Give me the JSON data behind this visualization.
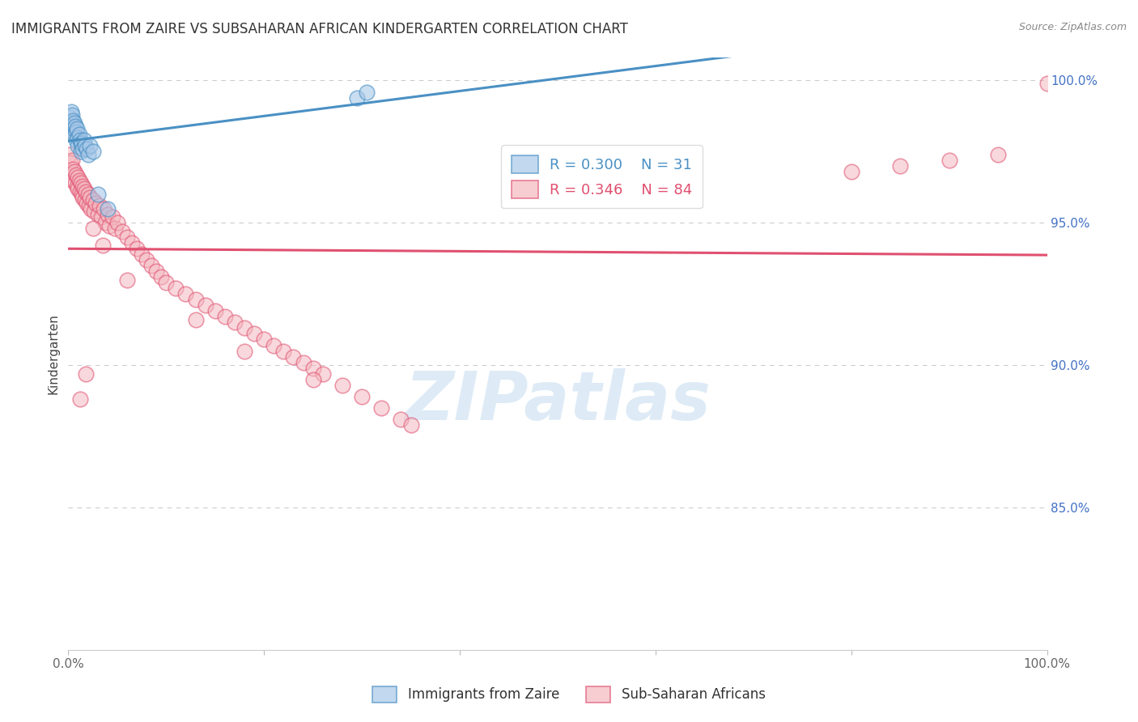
{
  "title": "IMMIGRANTS FROM ZAIRE VS SUBSAHARAN AFRICAN KINDERGARTEN CORRELATION CHART",
  "source": "Source: ZipAtlas.com",
  "ylabel": "Kindergarten",
  "xlim": [
    0,
    1.0
  ],
  "ylim": [
    0.8,
    1.008
  ],
  "x_ticks": [
    0.0,
    0.2,
    0.4,
    0.6,
    0.8,
    1.0
  ],
  "x_tick_labels": [
    "0.0%",
    "",
    "",
    "",
    "",
    "100.0%"
  ],
  "y_ticks_right": [
    1.0,
    0.95,
    0.9,
    0.85
  ],
  "y_tick_labels_right": [
    "100.0%",
    "95.0%",
    "90.0%",
    "85.0%"
  ],
  "blue_R": 0.3,
  "blue_N": 31,
  "pink_R": 0.346,
  "pink_N": 84,
  "blue_fill": "#a8c8e8",
  "blue_edge": "#4a90c4",
  "pink_fill": "#f4b8c0",
  "pink_edge": "#e05070",
  "blue_line": "#4a90c4",
  "pink_line": "#e05070",
  "grid_color": "#cccccc",
  "watermark_color": "#c8dff0",
  "blue_x": [
    0.002,
    0.003,
    0.003,
    0.004,
    0.004,
    0.005,
    0.005,
    0.006,
    0.006,
    0.007,
    0.008,
    0.008,
    0.009,
    0.01,
    0.01,
    0.011,
    0.012,
    0.013,
    0.013,
    0.014,
    0.015,
    0.016,
    0.017,
    0.019,
    0.02,
    0.022,
    0.025,
    0.03,
    0.04,
    0.295,
    0.305
  ],
  "blue_y": [
    0.987,
    0.989,
    0.985,
    0.988,
    0.984,
    0.986,
    0.983,
    0.985,
    0.981,
    0.984,
    0.982,
    0.979,
    0.983,
    0.98,
    0.977,
    0.981,
    0.979,
    0.978,
    0.975,
    0.978,
    0.976,
    0.979,
    0.977,
    0.976,
    0.974,
    0.977,
    0.975,
    0.96,
    0.955,
    0.994,
    0.996
  ],
  "pink_x": [
    0.001,
    0.002,
    0.003,
    0.004,
    0.005,
    0.005,
    0.006,
    0.007,
    0.008,
    0.009,
    0.01,
    0.01,
    0.011,
    0.012,
    0.013,
    0.014,
    0.015,
    0.015,
    0.016,
    0.017,
    0.018,
    0.019,
    0.02,
    0.021,
    0.022,
    0.023,
    0.025,
    0.026,
    0.028,
    0.03,
    0.032,
    0.034,
    0.036,
    0.038,
    0.04,
    0.042,
    0.045,
    0.048,
    0.05,
    0.055,
    0.06,
    0.065,
    0.07,
    0.075,
    0.08,
    0.085,
    0.09,
    0.095,
    0.1,
    0.11,
    0.12,
    0.13,
    0.14,
    0.15,
    0.16,
    0.17,
    0.18,
    0.19,
    0.2,
    0.21,
    0.22,
    0.23,
    0.24,
    0.25,
    0.26,
    0.28,
    0.3,
    0.32,
    0.34,
    0.35,
    0.18,
    0.25,
    0.62,
    0.8,
    0.85,
    0.9,
    0.95,
    1.0,
    0.13,
    0.06,
    0.035,
    0.025,
    0.018,
    0.012
  ],
  "pink_y": [
    0.974,
    0.971,
    0.968,
    0.972,
    0.969,
    0.965,
    0.968,
    0.964,
    0.967,
    0.963,
    0.966,
    0.962,
    0.965,
    0.961,
    0.964,
    0.96,
    0.963,
    0.959,
    0.962,
    0.958,
    0.961,
    0.957,
    0.96,
    0.956,
    0.959,
    0.955,
    0.958,
    0.954,
    0.957,
    0.953,
    0.956,
    0.952,
    0.955,
    0.95,
    0.953,
    0.949,
    0.952,
    0.948,
    0.95,
    0.947,
    0.945,
    0.943,
    0.941,
    0.939,
    0.937,
    0.935,
    0.933,
    0.931,
    0.929,
    0.927,
    0.925,
    0.923,
    0.921,
    0.919,
    0.917,
    0.915,
    0.913,
    0.911,
    0.909,
    0.907,
    0.905,
    0.903,
    0.901,
    0.899,
    0.897,
    0.893,
    0.889,
    0.885,
    0.881,
    0.879,
    0.905,
    0.895,
    0.972,
    0.968,
    0.97,
    0.972,
    0.974,
    0.999,
    0.916,
    0.93,
    0.942,
    0.948,
    0.897,
    0.888
  ]
}
